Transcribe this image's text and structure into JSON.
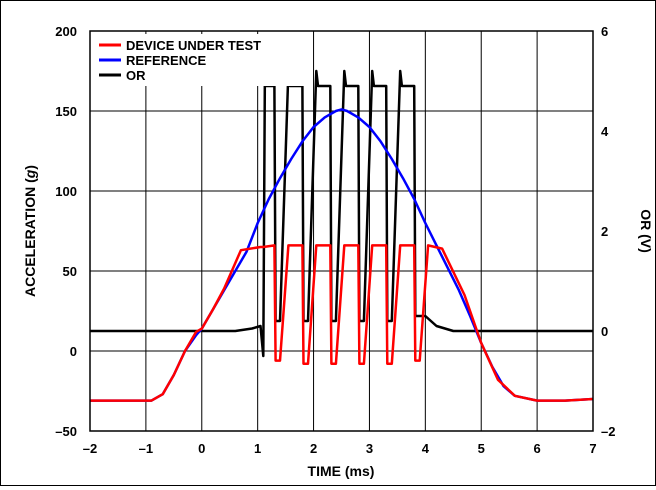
{
  "chart_data": {
    "type": "line",
    "xlabel": "TIME (ms)",
    "ylabel": "ACCELERATION (g)",
    "ylabel_main": "ACCELERATION (",
    "ylabel_italic": "g",
    "ylabel_close": ")",
    "y2label": "OR (V)",
    "xlim": [
      -2,
      7
    ],
    "ylim": [
      -50,
      200
    ],
    "y2lim": [
      -2,
      6
    ],
    "x_ticks": [
      "–2",
      "–1",
      "0",
      "1",
      "2",
      "3",
      "4",
      "5",
      "6",
      "7"
    ],
    "y_ticks": [
      "–50",
      "0",
      "50",
      "100",
      "150",
      "200"
    ],
    "y2_ticks": [
      "–2",
      "0",
      "2",
      "4",
      "6"
    ],
    "grid": true,
    "legend_position": "top-left",
    "series": [
      {
        "name": "DEVICE UNDER TEST",
        "axis": "left",
        "color": "#ff0000",
        "x": [
          -2,
          -1.2,
          -0.9,
          -0.7,
          -0.5,
          -0.3,
          -0.1,
          0,
          0.2,
          0.4,
          0.7,
          1.05,
          1.1,
          1.3,
          1.32,
          1.4,
          1.55,
          1.8,
          1.82,
          1.9,
          2.05,
          2.3,
          2.32,
          2.4,
          2.55,
          2.8,
          2.82,
          2.9,
          3.05,
          3.3,
          3.32,
          3.4,
          3.55,
          3.8,
          3.82,
          3.9,
          4.05,
          4.3,
          4.7,
          5.0,
          5.3,
          5.6,
          6.0,
          6.5,
          7
        ],
        "y": [
          -31,
          -31,
          -31,
          -27,
          -15,
          0,
          12,
          14,
          26,
          39,
          63,
          65,
          65,
          66,
          -6,
          -6,
          66,
          66,
          -8,
          -8,
          66,
          66,
          -8,
          -8,
          66,
          66,
          -8,
          -8,
          66,
          66,
          -8,
          -8,
          66,
          66,
          -6,
          -6,
          66,
          64,
          35,
          5,
          -18,
          -28,
          -31,
          -31,
          -30
        ]
      },
      {
        "name": "REFERENCE",
        "axis": "left",
        "color": "#0000ff",
        "x": [
          -2,
          -1.2,
          -0.9,
          -0.7,
          -0.5,
          -0.3,
          -0.1,
          0,
          0.2,
          0.4,
          0.6,
          0.8,
          1.0,
          1.2,
          1.4,
          1.6,
          1.8,
          2.0,
          2.2,
          2.4,
          2.5,
          2.6,
          2.8,
          3.0,
          3.2,
          3.4,
          3.6,
          3.8,
          4.0,
          4.2,
          4.4,
          4.6,
          4.8,
          5.0,
          5.2,
          5.4,
          5.6,
          6.0,
          6.5,
          7
        ],
        "y": [
          -31,
          -31,
          -31,
          -27,
          -15,
          0,
          10,
          14,
          26,
          38,
          50,
          62,
          80,
          95,
          108,
          120,
          131,
          140,
          146,
          150,
          151,
          150,
          146,
          140,
          131,
          120,
          108,
          95,
          80,
          66,
          52,
          38,
          22,
          5,
          -10,
          -22,
          -28,
          -31,
          -31,
          -30
        ]
      },
      {
        "name": "OR",
        "axis": "right",
        "color": "#000000",
        "x": [
          -2,
          0.6,
          0.9,
          1.05,
          1.1,
          1.13,
          1.16,
          1.3,
          1.32,
          1.4,
          1.55,
          1.58,
          1.8,
          1.82,
          1.9,
          2.05,
          2.08,
          2.3,
          2.32,
          2.4,
          2.55,
          2.58,
          2.8,
          2.82,
          2.9,
          3.05,
          3.08,
          3.3,
          3.32,
          3.4,
          3.55,
          3.58,
          3.8,
          3.82,
          3.9,
          4.0,
          4.2,
          4.5,
          7
        ],
        "y": [
          0,
          0,
          0.05,
          0.1,
          -0.5,
          5.2,
          4.9,
          4.9,
          0.2,
          0.2,
          5.2,
          4.9,
          4.9,
          0.2,
          0.2,
          5.2,
          4.9,
          4.9,
          0.2,
          0.2,
          5.2,
          4.9,
          4.9,
          0.2,
          0.2,
          5.2,
          4.9,
          4.9,
          0.2,
          0.2,
          5.2,
          4.9,
          4.9,
          0.3,
          0.3,
          0.3,
          0.1,
          0.0,
          0.0
        ]
      }
    ]
  }
}
